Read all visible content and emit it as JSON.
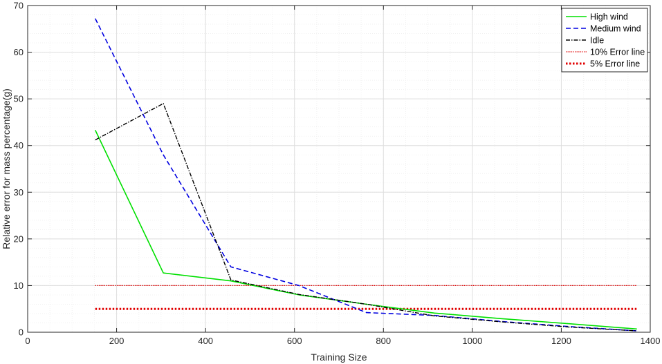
{
  "chart_data": {
    "type": "line",
    "title": "",
    "xlabel": "Training Size",
    "ylabel": "Relative error for mass percentage(g)",
    "xlim": [
      0,
      1400
    ],
    "ylim": [
      0,
      70
    ],
    "xticks": [
      0,
      200,
      400,
      600,
      800,
      1000,
      1200,
      1400
    ],
    "yticks": [
      0,
      10,
      20,
      30,
      40,
      50,
      60,
      70
    ],
    "xtick_labels": [
      "0",
      "200",
      "400",
      "600",
      "800",
      "1000",
      "1200",
      "1400"
    ],
    "ytick_labels": [
      "0",
      "10",
      "20",
      "30",
      "40",
      "50",
      "60",
      "70"
    ],
    "grid": true,
    "minor_grid": true,
    "legend_position": "top-right",
    "series": [
      {
        "name": "High wind",
        "color": "#00e000",
        "style": "solid",
        "x": [
          152,
          305,
          457,
          610,
          762,
          915,
          1067,
          1220,
          1370
        ],
        "y": [
          43.3,
          12.7,
          11.0,
          8.0,
          6.0,
          4.1,
          2.9,
          1.8,
          0.7
        ]
      },
      {
        "name": "Medium wind",
        "color": "#0000e0",
        "style": "dashed",
        "x": [
          152,
          305,
          457,
          610,
          762,
          915,
          1067,
          1220,
          1370
        ],
        "y": [
          67.2,
          38.0,
          14.0,
          10.0,
          4.2,
          3.6,
          2.3,
          1.2,
          0.3
        ]
      },
      {
        "name": "Idle",
        "color": "#000000",
        "style": "dashdot",
        "x": [
          152,
          305,
          457,
          610,
          762,
          915,
          1067,
          1220,
          1370
        ],
        "y": [
          41.2,
          49.0,
          11.2,
          8.1,
          6.0,
          3.5,
          2.2,
          1.1,
          0.3
        ]
      },
      {
        "name": "10% Error line",
        "color": "#e00000",
        "style": "dotted-thin",
        "x": [
          152,
          1370
        ],
        "y": [
          10,
          10
        ]
      },
      {
        "name": "5% Error line",
        "color": "#e00000",
        "style": "dotted-thick",
        "x": [
          152,
          1370
        ],
        "y": [
          5,
          5
        ]
      }
    ]
  }
}
